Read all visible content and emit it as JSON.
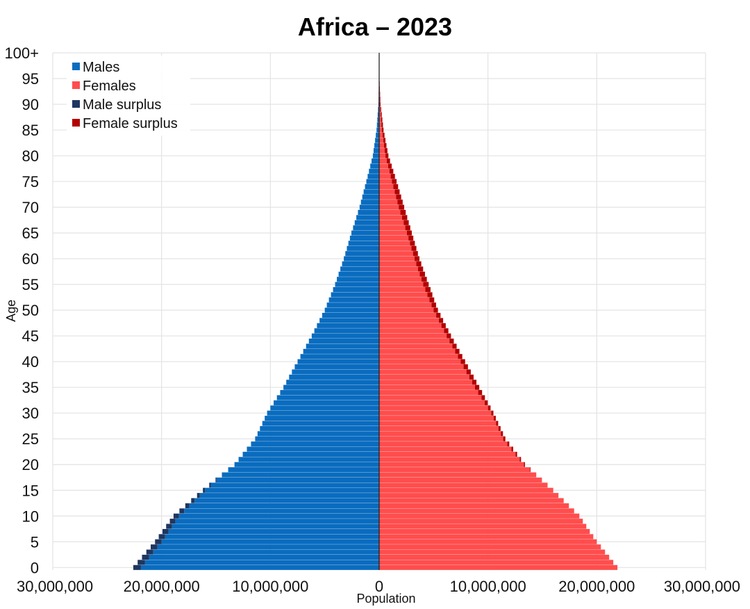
{
  "chart_data": {
    "type": "bar",
    "orientation": "horizontal",
    "layout": "population-pyramid",
    "title": "Africa – 2023",
    "xlabel": "Population",
    "ylabel": "Age",
    "xlim": [
      -30000000,
      30000000
    ],
    "ylim": [
      0,
      100
    ],
    "x_ticks": [
      {
        "value": -30000000,
        "label": "30,000,000"
      },
      {
        "value": -20000000,
        "label": "20,000,000"
      },
      {
        "value": -10000000,
        "label": "10,000,000"
      },
      {
        "value": 0,
        "label": "0"
      },
      {
        "value": 10000000,
        "label": "10,000,000"
      },
      {
        "value": 20000000,
        "label": "20,000,000"
      },
      {
        "value": 30000000,
        "label": "30,000,000"
      }
    ],
    "y_ticks": [
      {
        "value": 0,
        "label": "0"
      },
      {
        "value": 5,
        "label": "5"
      },
      {
        "value": 10,
        "label": "10"
      },
      {
        "value": 15,
        "label": "15"
      },
      {
        "value": 20,
        "label": "20"
      },
      {
        "value": 25,
        "label": "25"
      },
      {
        "value": 30,
        "label": "30"
      },
      {
        "value": 35,
        "label": "35"
      },
      {
        "value": 40,
        "label": "40"
      },
      {
        "value": 45,
        "label": "45"
      },
      {
        "value": 50,
        "label": "50"
      },
      {
        "value": 55,
        "label": "55"
      },
      {
        "value": 60,
        "label": "60"
      },
      {
        "value": 65,
        "label": "65"
      },
      {
        "value": 70,
        "label": "70"
      },
      {
        "value": 75,
        "label": "75"
      },
      {
        "value": 80,
        "label": "80"
      },
      {
        "value": 85,
        "label": "85"
      },
      {
        "value": 90,
        "label": "90"
      },
      {
        "value": 95,
        "label": "95"
      },
      {
        "value": 100,
        "label": "100+"
      }
    ],
    "grid": true,
    "legend_position": "top-left",
    "legend": [
      {
        "name": "Males",
        "color": "#0a6cbf"
      },
      {
        "name": "Females",
        "color": "#ff4d4d"
      },
      {
        "name": "Male surplus",
        "color": "#1f3660"
      },
      {
        "name": "Female surplus",
        "color": "#b30000"
      }
    ],
    "colors": {
      "males": "#0a6cbf",
      "females": "#ff4d4d",
      "male_surplus": "#1f3660",
      "female_surplus": "#b30000"
    },
    "ages_key_points": [
      0,
      5,
      10,
      15,
      20,
      25,
      30,
      35,
      40,
      45,
      50,
      55,
      60,
      65,
      70,
      75,
      80,
      85,
      90,
      95,
      100
    ],
    "males_key_points": [
      22600000,
      20600000,
      18900000,
      16200000,
      13300000,
      11400000,
      10300000,
      8800000,
      7500000,
      6200000,
      5000000,
      4050000,
      3250000,
      2550000,
      1800000,
      1180000,
      580000,
      240000,
      70000,
      12000,
      2000
    ],
    "females_key_points": [
      21900000,
      20000000,
      18400000,
      16000000,
      13400000,
      11600000,
      10500000,
      9200000,
      7900000,
      6600000,
      5400000,
      4550000,
      3700000,
      3000000,
      2300000,
      1600000,
      850000,
      400000,
      130000,
      25000,
      4000
    ]
  }
}
